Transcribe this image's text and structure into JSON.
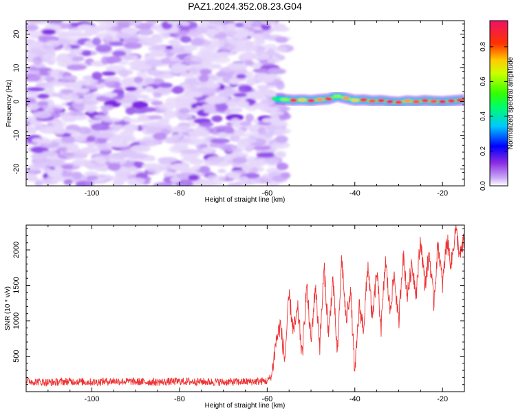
{
  "title": "PAZ1.2024.352.08.23.G04",
  "chart_data": [
    {
      "type": "heatmap",
      "xlabel": "Height of straight line (km)",
      "ylabel": "Frequency (Hz)",
      "xlim": [
        -115,
        -15
      ],
      "ylim": [
        -25,
        24
      ],
      "xticks": [
        -100,
        -80,
        -60,
        -40,
        -20
      ],
      "yticks": [
        -20,
        -10,
        0,
        10,
        20
      ],
      "colorbar": {
        "label": "Normalized spectral amplitude",
        "range": [
          0,
          0.95
        ],
        "ticks": [
          "0.0",
          "0.2",
          "0.4",
          "0.6",
          "0.8"
        ]
      },
      "noise_region": {
        "x": [
          -115,
          -58
        ],
        "y": [
          -25,
          24
        ],
        "amplitude": [
          0.05,
          0.2
        ]
      },
      "signal_trace": {
        "x": [
          -58,
          -56,
          -54,
          -52,
          -50,
          -48,
          -46,
          -44,
          -42,
          -40,
          -38,
          -36,
          -34,
          -32,
          -30,
          -28,
          -26,
          -24,
          -22,
          -20,
          -18,
          -16,
          -15
        ],
        "freq": [
          0.8,
          0.6,
          0.4,
          0.5,
          0.3,
          0.6,
          0.8,
          1.6,
          1.0,
          0.4,
          0.5,
          0.2,
          0.3,
          0.0,
          -0.2,
          0.2,
          0.0,
          0.3,
          0.1,
          0.0,
          0.2,
          0.4,
          0.6
        ],
        "amplitude": [
          0.45,
          0.6,
          0.85,
          0.7,
          0.9,
          0.75,
          0.85,
          0.6,
          0.75,
          0.7,
          0.85,
          0.8,
          0.9,
          0.95,
          0.85,
          0.75,
          0.8,
          0.85,
          0.8,
          0.95,
          0.9,
          0.85,
          0.8
        ]
      }
    },
    {
      "type": "line",
      "xlabel": "Height of straight line (km)",
      "ylabel": "SNR (10 * v/v)",
      "xlim": [
        -115,
        -15
      ],
      "ylim": [
        0,
        2350
      ],
      "xticks": [
        -100,
        -80,
        -60,
        -40,
        -20
      ],
      "yticks": [
        500,
        1000,
        1500,
        2000
      ],
      "series": [
        {
          "color": "#ee3333",
          "x": [
            -115,
            -110,
            -105,
            -100,
            -95,
            -90,
            -85,
            -80,
            -75,
            -70,
            -65,
            -60,
            -59,
            -58,
            -57,
            -56,
            -55,
            -54,
            -53,
            -52,
            -51,
            -50,
            -49,
            -48,
            -47,
            -46,
            -45,
            -44,
            -43,
            -42,
            -41,
            -40,
            -39,
            -38,
            -37,
            -36,
            -35,
            -34,
            -33,
            -32,
            -31,
            -30,
            -29,
            -28,
            -27,
            -26,
            -25,
            -24,
            -23,
            -22,
            -21,
            -20,
            -19,
            -18,
            -17,
            -16,
            -15
          ],
          "values": [
            150,
            130,
            145,
            135,
            150,
            140,
            135,
            145,
            140,
            135,
            140,
            150,
            220,
            700,
            950,
            450,
            1350,
            850,
            1150,
            500,
            1500,
            700,
            1500,
            650,
            1750,
            800,
            1600,
            500,
            1900,
            1000,
            1450,
            250,
            1200,
            900,
            1800,
            1000,
            1700,
            900,
            1850,
            1150,
            1650,
            950,
            1950,
            1350,
            1800,
            1400,
            2150,
            1500,
            1950,
            1250,
            2100,
            1500,
            2150,
            1800,
            2300,
            1900,
            2150
          ]
        }
      ]
    }
  ]
}
